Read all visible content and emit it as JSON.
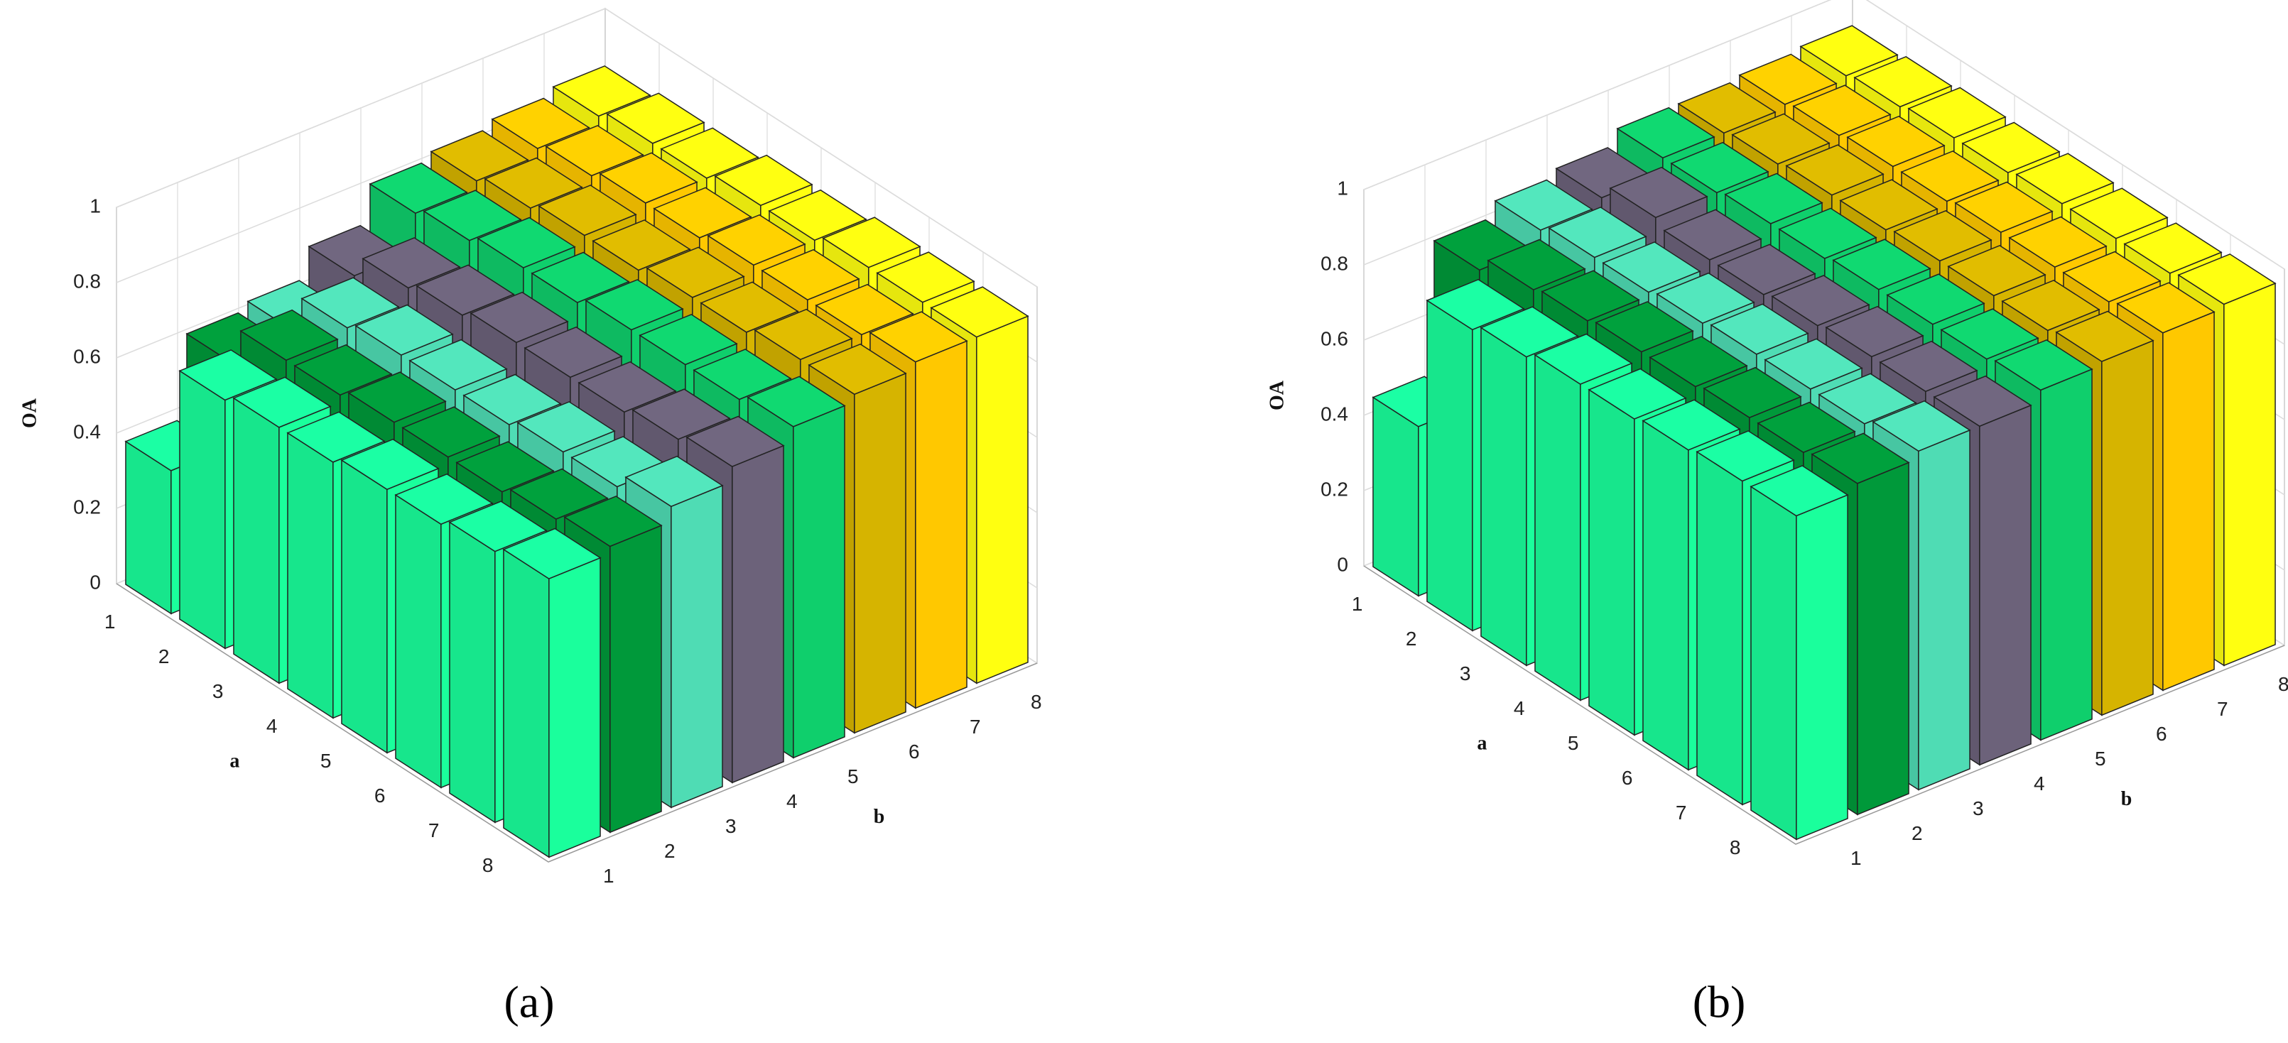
{
  "chart_data": [
    {
      "type": "bar3d",
      "caption": "(a)",
      "xlabel": "a",
      "ylabel": "b",
      "zlabel": "OA",
      "x": [
        1,
        2,
        3,
        4,
        5,
        6,
        7,
        8
      ],
      "y": [
        1,
        2,
        3,
        4,
        5,
        6,
        7,
        8
      ],
      "zlim": [
        0,
        1
      ],
      "zticks": [
        0,
        0.2,
        0.4,
        0.6,
        0.8,
        1
      ],
      "grid": true,
      "series": [
        {
          "color": "#1aff9c",
          "values": [
            0.38,
            0.66,
            0.68,
            0.68,
            0.7,
            0.7,
            0.72,
            0.74
          ]
        },
        {
          "color": "#00993a",
          "values": [
            0.6,
            0.7,
            0.7,
            0.72,
            0.72,
            0.72,
            0.74,
            0.76
          ]
        },
        {
          "color": "#4fdcb4",
          "values": [
            0.62,
            0.72,
            0.74,
            0.74,
            0.74,
            0.76,
            0.76,
            0.8
          ]
        },
        {
          "color": "#6c627a",
          "values": [
            0.7,
            0.76,
            0.78,
            0.8,
            0.8,
            0.8,
            0.82,
            0.84
          ]
        },
        {
          "color": "#0fcf6c",
          "values": [
            0.8,
            0.82,
            0.84,
            0.84,
            0.86,
            0.86,
            0.86,
            0.88
          ]
        },
        {
          "color": "#d6b400",
          "values": [
            0.82,
            0.84,
            0.86,
            0.86,
            0.88,
            0.88,
            0.9,
            0.9
          ]
        },
        {
          "color": "#ffc800",
          "values": [
            0.84,
            0.86,
            0.88,
            0.88,
            0.9,
            0.9,
            0.9,
            0.92
          ]
        },
        {
          "color": "#ffff10",
          "values": [
            0.86,
            0.88,
            0.88,
            0.9,
            0.9,
            0.92,
            0.92,
            0.92
          ]
        }
      ]
    },
    {
      "type": "bar3d",
      "caption": "(b)",
      "xlabel": "a",
      "ylabel": "b",
      "zlabel": "OA",
      "x": [
        1,
        2,
        3,
        4,
        5,
        6,
        7,
        8
      ],
      "y": [
        1,
        2,
        3,
        4,
        5,
        6,
        7,
        8
      ],
      "zlim": [
        0,
        1
      ],
      "zticks": [
        0,
        0.2,
        0.4,
        0.6,
        0.8,
        1
      ],
      "grid": true,
      "series": [
        {
          "color": "#1aff9c",
          "values": [
            0.45,
            0.8,
            0.82,
            0.84,
            0.84,
            0.85,
            0.86,
            0.86
          ]
        },
        {
          "color": "#00993a",
          "values": [
            0.8,
            0.84,
            0.85,
            0.86,
            0.86,
            0.87,
            0.87,
            0.88
          ]
        },
        {
          "color": "#4fdcb4",
          "values": [
            0.84,
            0.86,
            0.86,
            0.87,
            0.88,
            0.88,
            0.88,
            0.9
          ]
        },
        {
          "color": "#6c627a",
          "values": [
            0.86,
            0.9,
            0.88,
            0.88,
            0.89,
            0.9,
            0.9,
            0.9
          ]
        },
        {
          "color": "#0fcf6c",
          "values": [
            0.9,
            0.9,
            0.91,
            0.91,
            0.92,
            0.92,
            0.92,
            0.93
          ]
        },
        {
          "color": "#d6b400",
          "values": [
            0.9,
            0.91,
            0.92,
            0.92,
            0.93,
            0.93,
            0.93,
            0.94
          ]
        },
        {
          "color": "#ffc800",
          "values": [
            0.91,
            0.92,
            0.93,
            0.93,
            0.94,
            0.94,
            0.94,
            0.95
          ]
        },
        {
          "color": "#ffff10",
          "values": [
            0.92,
            0.93,
            0.94,
            0.94,
            0.95,
            0.95,
            0.95,
            0.96
          ]
        }
      ]
    }
  ]
}
